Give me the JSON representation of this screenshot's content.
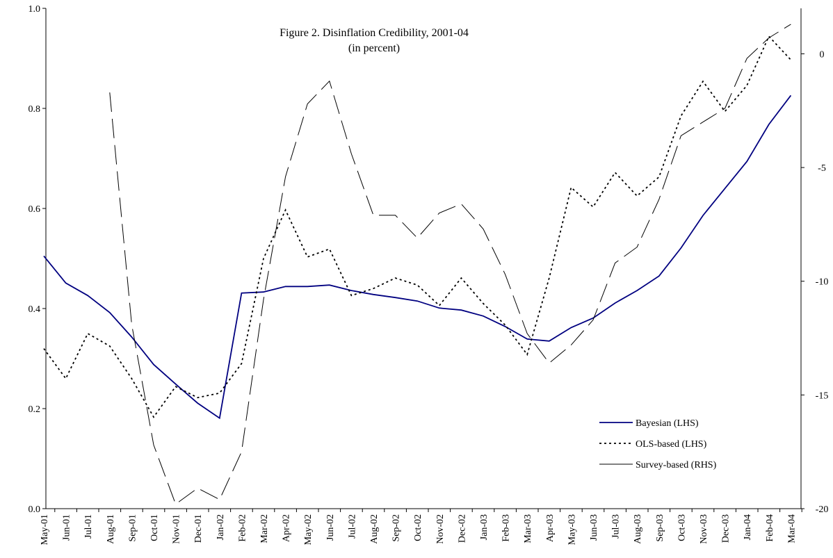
{
  "chart_data": {
    "type": "line",
    "title": "Figure 2. Disinflation Credibility, 2001-04",
    "subtitle": "(in percent)",
    "categories": [
      "May-01",
      "Jun-01",
      "Jul-01",
      "Aug-01",
      "Sep-01",
      "Oct-01",
      "Nov-01",
      "Dec-01",
      "Jan-02",
      "Feb-02",
      "Mar-02",
      "Apr-02",
      "May-02",
      "Jun-02",
      "Jul-02",
      "Aug-02",
      "Sep-02",
      "Oct-02",
      "Nov-02",
      "Dec-02",
      "Jan-03",
      "Feb-03",
      "Mar-03",
      "Apr-03",
      "May-03",
      "Jun-03",
      "Jul-03",
      "Aug-03",
      "Sep-03",
      "Oct-03",
      "Nov-03",
      "Dec-03",
      "Jan-04",
      "Feb-04",
      "Mar-04"
    ],
    "series": [
      {
        "name": "Bayesian (LHS)",
        "color": "#000080",
        "dash": "solid",
        "axis": "y",
        "values": [
          0.505,
          0.451,
          0.426,
          0.392,
          0.343,
          0.288,
          0.249,
          0.211,
          0.181,
          0.431,
          0.433,
          0.444,
          0.444,
          0.447,
          0.436,
          0.428,
          0.422,
          0.415,
          0.401,
          0.397,
          0.385,
          0.364,
          0.339,
          0.335,
          0.362,
          0.381,
          0.411,
          0.436,
          0.465,
          0.521,
          0.586,
          0.64,
          0.694,
          0.768,
          0.826
        ]
      },
      {
        "name": "OLS-based (LHS)",
        "color": "#000000",
        "dash": "dotted",
        "axis": "y",
        "values": [
          0.32,
          0.26,
          0.35,
          0.325,
          0.26,
          0.183,
          0.244,
          0.222,
          0.231,
          0.29,
          0.5,
          0.597,
          0.503,
          0.519,
          0.426,
          0.44,
          0.461,
          0.447,
          0.406,
          0.461,
          0.41,
          0.367,
          0.308,
          0.461,
          0.642,
          0.603,
          0.672,
          0.625,
          0.663,
          0.785,
          0.854,
          0.794,
          0.846,
          0.944,
          0.897
        ]
      },
      {
        "name": "Survey-based (RHS)",
        "color": "#000000",
        "dash": "dashed",
        "axis": "y2",
        "values": [
          null,
          null,
          null,
          -1.7,
          -11.9,
          -17.2,
          -19.8,
          -19.1,
          -19.6,
          -17.5,
          -10.8,
          -5.4,
          -2.2,
          -1.2,
          -4.4,
          -7.1,
          -7.1,
          -8.1,
          -7.0,
          -6.6,
          -7.7,
          -9.7,
          -12.3,
          -13.6,
          -12.8,
          -11.7,
          -9.2,
          -8.5,
          -6.4,
          -3.6,
          -3.0,
          -2.4,
          -0.2,
          0.7,
          1.3
        ]
      }
    ],
    "ylim": [
      0,
      1
    ],
    "yticks": [
      {
        "value": 0,
        "label": "0.0"
      },
      0.2,
      0.4,
      0.6,
      0.8,
      {
        "value": 1,
        "label": "1.0"
      }
    ],
    "y2lim": [
      -20,
      2
    ],
    "y2ticks": [
      0,
      -5,
      -10,
      -15,
      -20
    ],
    "grid": false,
    "legend": "lower right"
  }
}
